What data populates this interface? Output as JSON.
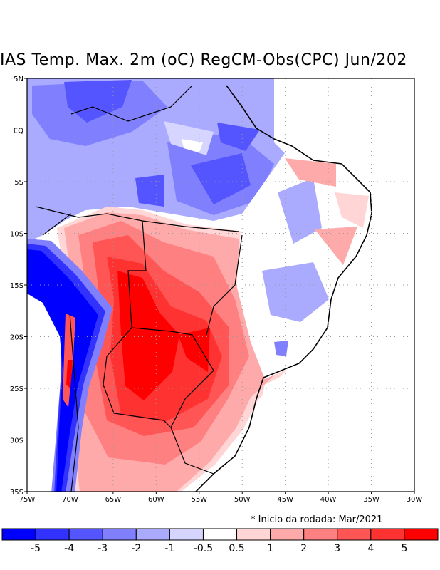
{
  "title": "IAS Temp. Max. 2m (oC) RegCM-Obs(CPC) Jun/202",
  "note": "* Inicio da rodada: Mar/2021",
  "map": {
    "lon_range": [
      -75,
      -30
    ],
    "lat_range": [
      -35,
      5
    ],
    "x_ticks": [
      "75W",
      "70W",
      "65W",
      "60W",
      "55W",
      "50W",
      "45W",
      "40W",
      "35W",
      "30W"
    ],
    "y_ticks": [
      "5N",
      "EQ",
      "5S",
      "10S",
      "15S",
      "20S",
      "25S",
      "30S",
      "35S"
    ]
  },
  "colorbar": {
    "labels": [
      "-5",
      "-4",
      "-3",
      "-2",
      "-1",
      "-0.5",
      "0.5",
      "1",
      "2",
      "3",
      "4",
      "5"
    ],
    "colors": [
      "#0000ff",
      "#3232ff",
      "#5555ff",
      "#8080ff",
      "#aaaaff",
      "#d5d5ff",
      "#ffffff",
      "#ffd5d5",
      "#ffaaaa",
      "#ff8080",
      "#ff5555",
      "#ff3232",
      "#ff0000"
    ]
  }
}
